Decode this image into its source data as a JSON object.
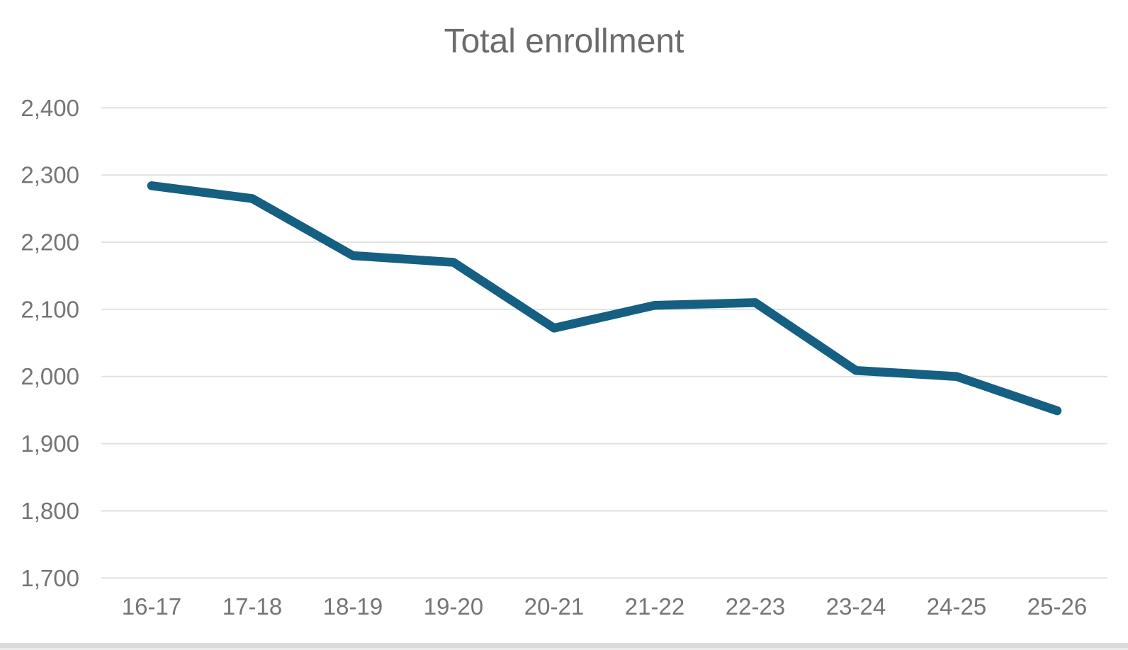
{
  "chart_data": {
    "type": "line",
    "title": "Total enrollment",
    "categories": [
      "16-17",
      "17-18",
      "18-19",
      "19-20",
      "20-21",
      "21-22",
      "22-23",
      "23-24",
      "24-25",
      "25-26"
    ],
    "series": [
      {
        "name": "Total enrollment",
        "values": [
          2284,
          2265,
          2180,
          2170,
          2072,
          2106,
          2110,
          2009,
          2000,
          1949
        ]
      }
    ],
    "xlabel": "",
    "ylabel": "",
    "ylim": [
      1700,
      2400
    ],
    "y_tick_step": 100,
    "y_tick_labels": [
      "1,700",
      "1,800",
      "1,900",
      "2,000",
      "2,100",
      "2,200",
      "2,300",
      "2,400"
    ],
    "grid": "horizontal-only",
    "legend": "none",
    "colors": {
      "line": "#156082",
      "gridline": "#E2E2E2",
      "axis_text": "#757575",
      "title_text": "#6B6B6B"
    }
  }
}
